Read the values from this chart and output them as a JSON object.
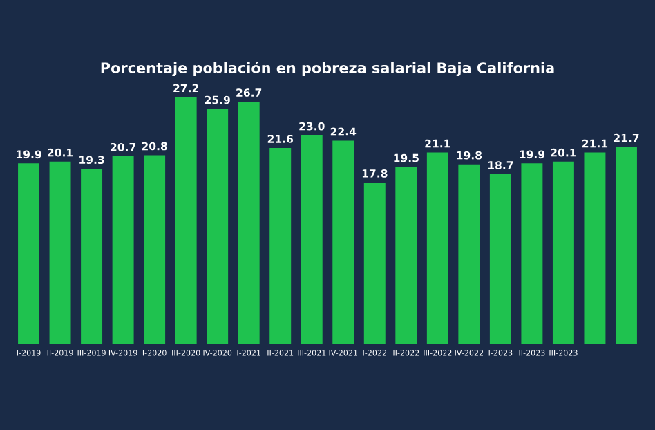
{
  "chart_data": {
    "type": "bar",
    "title": "Porcentaje población en pobreza salarial Baja California",
    "categories": [
      "I-2019",
      "II-2019",
      "III-2019",
      "IV-2019",
      "I-2020",
      "III-2020",
      "IV-2020",
      "I-2021",
      "II-2021",
      "III-2021",
      "IV-2021",
      "I-2022",
      "II-2022",
      "III-2022",
      "IV-2022",
      "I-2023",
      "II-2023",
      "III-2023",
      null,
      null
    ],
    "values": [
      19.9,
      20.1,
      19.3,
      20.7,
      20.8,
      27.2,
      25.9,
      26.7,
      21.6,
      23.0,
      22.4,
      17.8,
      19.5,
      21.1,
      19.8,
      18.7,
      19.9,
      20.1,
      21.1,
      21.7
    ],
    "value_labels": [
      "19.9",
      "20.1",
      "19.3",
      "20.7",
      "20.8",
      "27.2",
      "25.9",
      "26.7",
      "21.6",
      "23.0",
      "22.4",
      "17.8",
      "19.5",
      "21.1",
      "19.8",
      "18.7",
      "19.9",
      "20.1",
      "21.1",
      "21.7"
    ],
    "color": "#1fc24f",
    "grid": false,
    "legend": false
  }
}
